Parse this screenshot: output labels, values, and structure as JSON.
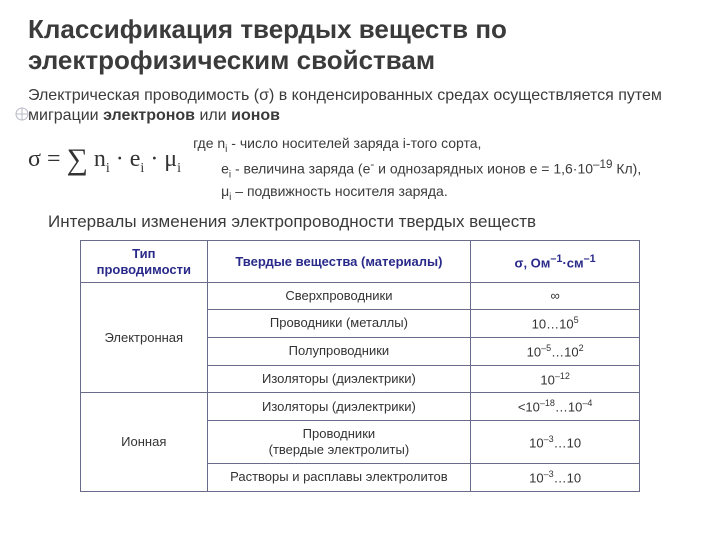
{
  "title": "Классификация твердых веществ по электрофизическим свойствам",
  "intro_html": "Электрическая проводимость (σ) в конденсированных средах осуществляется путем миграции <b>электронов</b> или <b>ионов</b>",
  "formula_html": "σ = <span class='sum'>∑</span> n<sub>i</sub> · e<sub>i</sub> · μ<sub>i</sub>",
  "legend_rows": [
    "где n<sub>i</sub> - число носителей заряда i-того сорта,",
    "e<sub>i</sub> - величина заряда (e<sup>-</sup> и однозарядных ионов e = 1,6·10<sup>–19</sup> Кл),",
    "μ<sub>i</sub> – подвижность носителя заряда."
  ],
  "subtitle": "Интервалы изменения электропроводности твердых веществ",
  "table": {
    "headers": [
      "Тип проводимости",
      "Твердые вещества (материалы)",
      "σ, Ом<sup>–1</sup>·см<sup>–1</sup>"
    ],
    "rows": [
      {
        "type": "Электронная",
        "rowspan": 4,
        "material": "Сверхпроводники",
        "sigma": "∞"
      },
      {
        "material": "Проводники (металлы)",
        "sigma": "10…10<sup>5</sup>"
      },
      {
        "material": "Полупроводники",
        "sigma": "10<sup>–5</sup>…10<sup>2</sup>"
      },
      {
        "material": "Изоляторы (диэлектрики)",
        "sigma": "10<sup>–12</sup>"
      },
      {
        "type": "Ионная",
        "rowspan": 3,
        "material": "Изоляторы (диэлектрики)",
        "sigma": "&lt;10<sup>–18</sup>…10<sup>–4</sup>"
      },
      {
        "material": "Проводники<br>(твердые электролиты)",
        "sigma": "10<sup>–3</sup>…10"
      },
      {
        "material": "Растворы и расплавы электролитов",
        "sigma": "10<sup>–3</sup>…10"
      }
    ]
  },
  "colors": {
    "header_text": "#2a2a8a",
    "border": "#6a6a8a",
    "text": "#3b3b3b",
    "bullet_stroke": "#b8b8c8"
  }
}
